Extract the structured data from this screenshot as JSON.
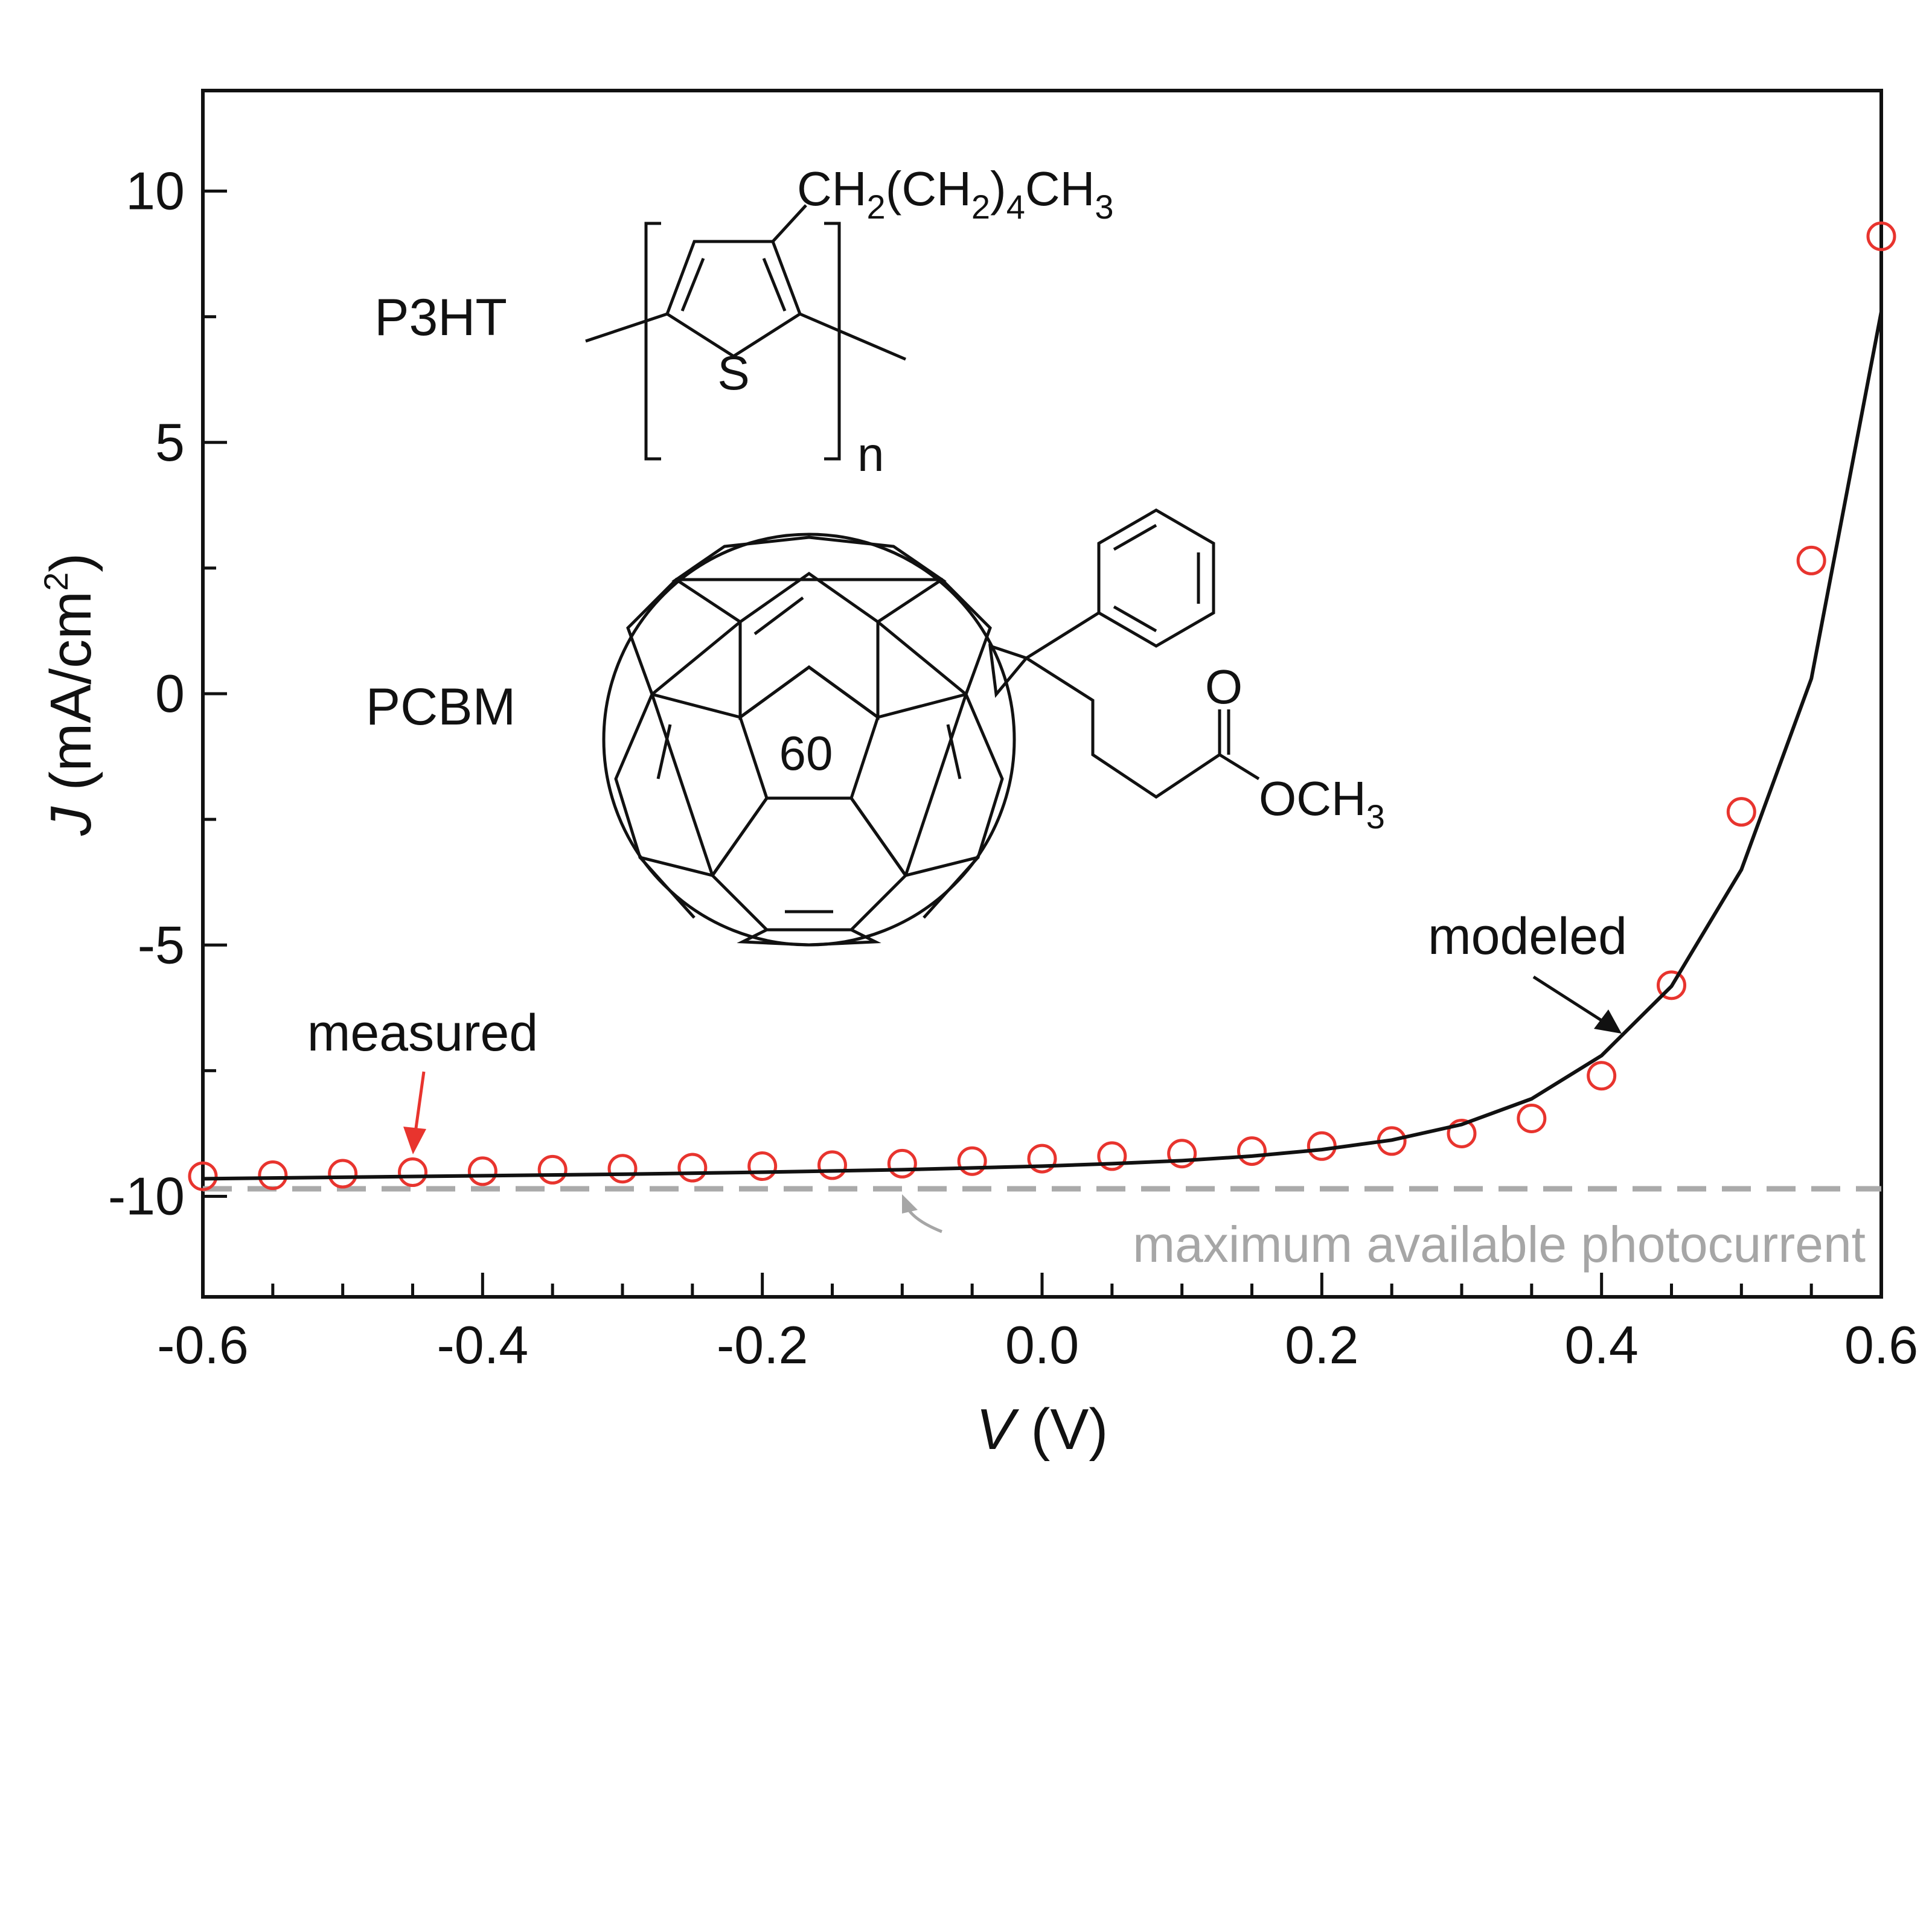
{
  "chart_data": {
    "type": "line",
    "xlabel_var": "V",
    "xlabel_unit": " (V)",
    "ylabel_var": "J",
    "ylabel_unit": " (mA/cm",
    "ylabel_sup": "2",
    "ylabel_close": ")",
    "xlim": [
      -0.6,
      0.6
    ],
    "ylim": [
      -12,
      12
    ],
    "xticks": [
      "-0.6",
      "-0.4",
      "-0.2",
      "0.0",
      "0.2",
      "0.4",
      "0.6"
    ],
    "xtick_values": [
      -0.6,
      -0.4,
      -0.2,
      0.0,
      0.2,
      0.4,
      0.6
    ],
    "yticks": [
      "-10",
      "-5",
      "0",
      "5",
      "10"
    ],
    "ytick_values": [
      -10,
      -5,
      0,
      5,
      10
    ],
    "series": [
      {
        "name": "measured",
        "style": "open-circle",
        "color": "#e8342e",
        "x": [
          -0.6,
          -0.55,
          -0.5,
          -0.45,
          -0.4,
          -0.35,
          -0.3,
          -0.25,
          -0.2,
          -0.15,
          -0.1,
          -0.05,
          0.0,
          0.05,
          0.1,
          0.15,
          0.2,
          0.25,
          0.3,
          0.35,
          0.4,
          0.45,
          0.5,
          0.55,
          0.6
        ],
        "y": [
          -9.6,
          -9.58,
          -9.55,
          -9.52,
          -9.5,
          -9.47,
          -9.45,
          -9.43,
          -9.4,
          -9.38,
          -9.35,
          -9.3,
          -9.25,
          -9.2,
          -9.15,
          -9.1,
          -9.0,
          -8.9,
          -8.75,
          -8.45,
          -7.6,
          -5.8,
          -2.35,
          2.65,
          9.1
        ]
      },
      {
        "name": "modeled",
        "style": "line",
        "color": "#111111",
        "x": [
          -0.6,
          -0.5,
          -0.4,
          -0.3,
          -0.2,
          -0.1,
          0.0,
          0.05,
          0.1,
          0.15,
          0.2,
          0.25,
          0.3,
          0.35,
          0.4,
          0.45,
          0.5,
          0.55,
          0.6
        ],
        "y": [
          -9.65,
          -9.62,
          -9.59,
          -9.56,
          -9.52,
          -9.47,
          -9.4,
          -9.35,
          -9.29,
          -9.2,
          -9.07,
          -8.88,
          -8.57,
          -8.06,
          -7.2,
          -5.82,
          -3.5,
          0.3,
          7.6
        ]
      }
    ],
    "reference_line": {
      "label": "maximum available photocurrent",
      "y": -9.85,
      "style": "dashed",
      "color": "#aaaaaa"
    },
    "annotations": {
      "measured": "measured",
      "modeled": "modeled"
    },
    "inset": {
      "p3ht_label": "P3HT",
      "pcbm_label": "PCBM",
      "side_chain": "CH",
      "side_chain_sub1": "2",
      "side_chain_mid": "(CH",
      "side_chain_sub2": "2",
      "side_chain_mid2": ")",
      "side_chain_sub3": "4",
      "side_chain_end": "CH",
      "side_chain_sub4": "3",
      "sulfur": "S",
      "repeat_n": "n",
      "fullerene": "60",
      "carbonyl_o": "O",
      "ester": "OCH",
      "ester_sub": "3"
    },
    "grid": false,
    "legend": "none"
  }
}
